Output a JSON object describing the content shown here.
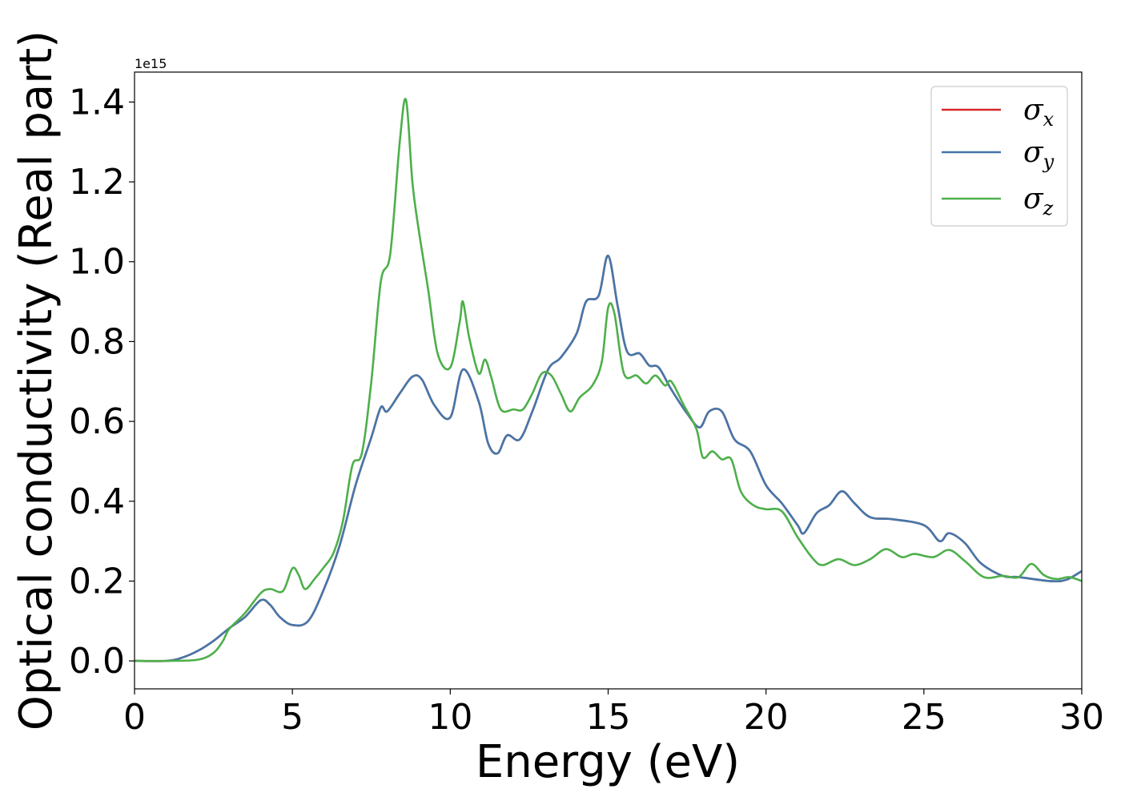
{
  "chart_data": {
    "type": "line",
    "title": "",
    "xlabel": "Energy (eV)",
    "ylabel": "Optical conductivity (Real part)",
    "y_offset_text": "1e15",
    "xlim": [
      0,
      30
    ],
    "ylim": [
      -0.07,
      1.475
    ],
    "xticks": [
      0,
      5,
      10,
      15,
      20,
      25,
      30
    ],
    "xtick_labels": [
      "0",
      "5",
      "10",
      "15",
      "20",
      "25",
      "30"
    ],
    "yticks": [
      0.0,
      0.2,
      0.4,
      0.6,
      0.8,
      1.0,
      1.2,
      1.4
    ],
    "ytick_labels": [
      "0.0",
      "0.2",
      "0.4",
      "0.6",
      "0.8",
      "1.0",
      "1.2",
      "1.4"
    ],
    "grid": false,
    "legend_position": "top-right",
    "series": [
      {
        "name": "σx",
        "legend_symbol": "σ",
        "legend_sub": "x",
        "color": "#d62728",
        "points": [
          [
            0,
            0
          ],
          [
            1,
            0
          ],
          [
            1.5,
            0.008
          ],
          [
            2,
            0.025
          ],
          [
            2.5,
            0.05
          ],
          [
            3,
            0.082
          ],
          [
            3.5,
            0.11
          ],
          [
            4,
            0.152
          ],
          [
            4.3,
            0.14
          ],
          [
            4.6,
            0.11
          ],
          [
            5,
            0.09
          ],
          [
            5.5,
            0.1
          ],
          [
            6,
            0.18
          ],
          [
            6.5,
            0.29
          ],
          [
            7,
            0.44
          ],
          [
            7.5,
            0.56
          ],
          [
            7.8,
            0.635
          ],
          [
            8,
            0.625
          ],
          [
            8.4,
            0.67
          ],
          [
            8.8,
            0.712
          ],
          [
            9.1,
            0.705
          ],
          [
            9.5,
            0.64
          ],
          [
            10,
            0.61
          ],
          [
            10.4,
            0.73
          ],
          [
            10.9,
            0.65
          ],
          [
            11.2,
            0.545
          ],
          [
            11.5,
            0.52
          ],
          [
            11.8,
            0.565
          ],
          [
            12.2,
            0.555
          ],
          [
            12.6,
            0.625
          ],
          [
            13.1,
            0.73
          ],
          [
            13.5,
            0.76
          ],
          [
            14,
            0.82
          ],
          [
            14.3,
            0.9
          ],
          [
            14.7,
            0.915
          ],
          [
            15,
            1.015
          ],
          [
            15.3,
            0.89
          ],
          [
            15.6,
            0.775
          ],
          [
            16,
            0.77
          ],
          [
            16.3,
            0.74
          ],
          [
            16.6,
            0.735
          ],
          [
            17,
            0.68
          ],
          [
            17.5,
            0.62
          ],
          [
            17.9,
            0.585
          ],
          [
            18.2,
            0.625
          ],
          [
            18.6,
            0.625
          ],
          [
            19,
            0.555
          ],
          [
            19.5,
            0.525
          ],
          [
            20,
            0.44
          ],
          [
            20.5,
            0.395
          ],
          [
            21,
            0.34
          ],
          [
            21.2,
            0.32
          ],
          [
            21.6,
            0.37
          ],
          [
            22,
            0.39
          ],
          [
            22.4,
            0.425
          ],
          [
            22.8,
            0.395
          ],
          [
            23.3,
            0.36
          ],
          [
            24,
            0.355
          ],
          [
            25,
            0.34
          ],
          [
            25.5,
            0.3
          ],
          [
            25.8,
            0.32
          ],
          [
            26.3,
            0.295
          ],
          [
            26.8,
            0.245
          ],
          [
            27.5,
            0.213
          ],
          [
            28,
            0.21
          ],
          [
            29,
            0.2
          ],
          [
            29.5,
            0.203
          ],
          [
            30,
            0.225
          ]
        ]
      },
      {
        "name": "σy",
        "legend_symbol": "σ",
        "legend_sub": "y",
        "color": "#4477aa",
        "points": [
          [
            0,
            0
          ],
          [
            1,
            0
          ],
          [
            1.5,
            0.008
          ],
          [
            2,
            0.025
          ],
          [
            2.5,
            0.05
          ],
          [
            3,
            0.082
          ],
          [
            3.5,
            0.11
          ],
          [
            4,
            0.152
          ],
          [
            4.3,
            0.14
          ],
          [
            4.6,
            0.11
          ],
          [
            5,
            0.09
          ],
          [
            5.5,
            0.1
          ],
          [
            6,
            0.18
          ],
          [
            6.5,
            0.29
          ],
          [
            7,
            0.44
          ],
          [
            7.5,
            0.56
          ],
          [
            7.8,
            0.635
          ],
          [
            8,
            0.625
          ],
          [
            8.4,
            0.67
          ],
          [
            8.8,
            0.712
          ],
          [
            9.1,
            0.705
          ],
          [
            9.5,
            0.64
          ],
          [
            10,
            0.61
          ],
          [
            10.4,
            0.73
          ],
          [
            10.9,
            0.65
          ],
          [
            11.2,
            0.545
          ],
          [
            11.5,
            0.52
          ],
          [
            11.8,
            0.565
          ],
          [
            12.2,
            0.555
          ],
          [
            12.6,
            0.625
          ],
          [
            13.1,
            0.73
          ],
          [
            13.5,
            0.76
          ],
          [
            14,
            0.82
          ],
          [
            14.3,
            0.9
          ],
          [
            14.7,
            0.915
          ],
          [
            15,
            1.015
          ],
          [
            15.3,
            0.89
          ],
          [
            15.6,
            0.775
          ],
          [
            16,
            0.77
          ],
          [
            16.3,
            0.74
          ],
          [
            16.6,
            0.735
          ],
          [
            17,
            0.68
          ],
          [
            17.5,
            0.62
          ],
          [
            17.9,
            0.585
          ],
          [
            18.2,
            0.625
          ],
          [
            18.6,
            0.625
          ],
          [
            19,
            0.555
          ],
          [
            19.5,
            0.525
          ],
          [
            20,
            0.44
          ],
          [
            20.5,
            0.395
          ],
          [
            21,
            0.34
          ],
          [
            21.2,
            0.32
          ],
          [
            21.6,
            0.37
          ],
          [
            22,
            0.39
          ],
          [
            22.4,
            0.425
          ],
          [
            22.8,
            0.395
          ],
          [
            23.3,
            0.36
          ],
          [
            24,
            0.355
          ],
          [
            25,
            0.34
          ],
          [
            25.5,
            0.3
          ],
          [
            25.8,
            0.32
          ],
          [
            26.3,
            0.295
          ],
          [
            26.8,
            0.245
          ],
          [
            27.5,
            0.213
          ],
          [
            28,
            0.21
          ],
          [
            29,
            0.2
          ],
          [
            29.5,
            0.203
          ],
          [
            30,
            0.225
          ]
        ]
      },
      {
        "name": "σz",
        "legend_symbol": "σ",
        "legend_sub": "z",
        "color": "#4daf4a",
        "points": [
          [
            0,
            0
          ],
          [
            1,
            0
          ],
          [
            2,
            0.003
          ],
          [
            2.5,
            0.02
          ],
          [
            2.8,
            0.05
          ],
          [
            3,
            0.08
          ],
          [
            3.5,
            0.12
          ],
          [
            4,
            0.17
          ],
          [
            4.3,
            0.18
          ],
          [
            4.7,
            0.175
          ],
          [
            5,
            0.232
          ],
          [
            5.2,
            0.215
          ],
          [
            5.4,
            0.18
          ],
          [
            5.7,
            0.205
          ],
          [
            6,
            0.235
          ],
          [
            6.3,
            0.27
          ],
          [
            6.6,
            0.35
          ],
          [
            6.9,
            0.49
          ],
          [
            7.2,
            0.52
          ],
          [
            7.5,
            0.7
          ],
          [
            7.8,
            0.95
          ],
          [
            8.1,
            1.02
          ],
          [
            8.4,
            1.3
          ],
          [
            8.6,
            1.405
          ],
          [
            8.8,
            1.2
          ],
          [
            9,
            1.08
          ],
          [
            9.3,
            0.93
          ],
          [
            9.6,
            0.77
          ],
          [
            10,
            0.735
          ],
          [
            10.3,
            0.85
          ],
          [
            10.4,
            0.9
          ],
          [
            10.6,
            0.81
          ],
          [
            10.9,
            0.72
          ],
          [
            11.1,
            0.755
          ],
          [
            11.3,
            0.71
          ],
          [
            11.6,
            0.63
          ],
          [
            12,
            0.63
          ],
          [
            12.3,
            0.63
          ],
          [
            12.6,
            0.67
          ],
          [
            12.9,
            0.72
          ],
          [
            13.2,
            0.715
          ],
          [
            13.5,
            0.67
          ],
          [
            13.8,
            0.625
          ],
          [
            14.1,
            0.66
          ],
          [
            14.5,
            0.69
          ],
          [
            14.8,
            0.75
          ],
          [
            15,
            0.885
          ],
          [
            15.2,
            0.87
          ],
          [
            15.5,
            0.72
          ],
          [
            15.9,
            0.715
          ],
          [
            16.2,
            0.695
          ],
          [
            16.5,
            0.715
          ],
          [
            16.8,
            0.69
          ],
          [
            17,
            0.7
          ],
          [
            17.4,
            0.64
          ],
          [
            17.8,
            0.58
          ],
          [
            18,
            0.51
          ],
          [
            18.3,
            0.525
          ],
          [
            18.6,
            0.505
          ],
          [
            18.9,
            0.505
          ],
          [
            19.2,
            0.425
          ],
          [
            19.6,
            0.39
          ],
          [
            20,
            0.38
          ],
          [
            20.5,
            0.375
          ],
          [
            21,
            0.31
          ],
          [
            21.5,
            0.255
          ],
          [
            21.8,
            0.24
          ],
          [
            22.3,
            0.255
          ],
          [
            22.8,
            0.24
          ],
          [
            23.3,
            0.255
          ],
          [
            23.8,
            0.28
          ],
          [
            24.3,
            0.26
          ],
          [
            24.7,
            0.268
          ],
          [
            25.3,
            0.26
          ],
          [
            25.8,
            0.278
          ],
          [
            26.3,
            0.25
          ],
          [
            26.9,
            0.21
          ],
          [
            27.5,
            0.213
          ],
          [
            28,
            0.21
          ],
          [
            28.4,
            0.243
          ],
          [
            28.8,
            0.215
          ],
          [
            29.2,
            0.205
          ],
          [
            29.6,
            0.21
          ],
          [
            30,
            0.2
          ]
        ]
      }
    ]
  }
}
